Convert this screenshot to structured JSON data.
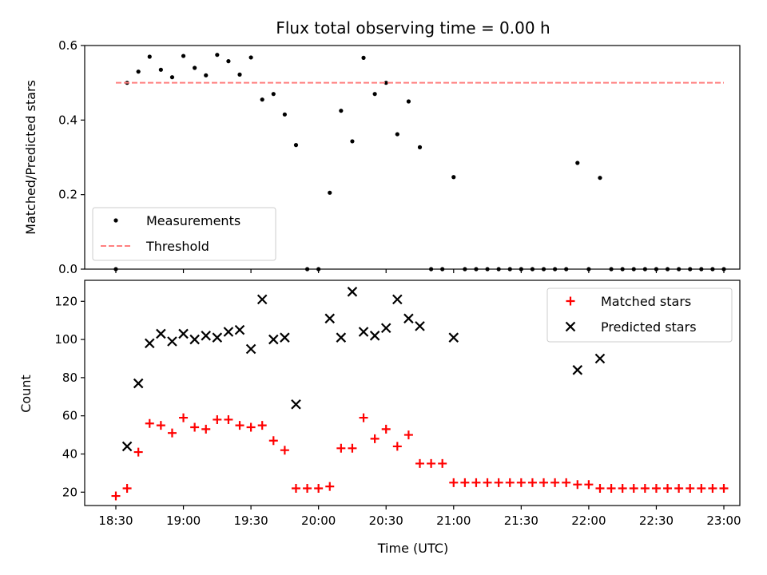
{
  "chart_data": [
    {
      "type": "scatter",
      "title": "Flux total observing time = 0.00 h",
      "ylabel": "Matched/Predicted stars",
      "ylim": [
        0,
        0.6
      ],
      "yticks": [
        "0.0",
        "0.2",
        "0.4",
        "0.6"
      ],
      "legend": "lower-left",
      "series": [
        {
          "name": "Measurements",
          "marker": "dot",
          "color": "#000000",
          "points": [
            [
              "18:30",
              0.0
            ],
            [
              "18:35",
              0.5
            ],
            [
              "18:40",
              0.53
            ],
            [
              "18:45",
              0.57
            ],
            [
              "18:50",
              0.535
            ],
            [
              "18:55",
              0.515
            ],
            [
              "19:00",
              0.572
            ],
            [
              "19:05",
              0.54
            ],
            [
              "19:10",
              0.52
            ],
            [
              "19:15",
              0.575
            ],
            [
              "19:20",
              0.558
            ],
            [
              "19:25",
              0.522
            ],
            [
              "19:30",
              0.568
            ],
            [
              "19:35",
              0.455
            ],
            [
              "19:40",
              0.47
            ],
            [
              "19:45",
              0.415
            ],
            [
              "19:50",
              0.333
            ],
            [
              "19:55",
              0.0
            ],
            [
              "20:00",
              0.0
            ],
            [
              "20:05",
              0.205
            ],
            [
              "20:10",
              0.425
            ],
            [
              "20:15",
              0.343
            ],
            [
              "20:20",
              0.567
            ],
            [
              "20:25",
              0.47
            ],
            [
              "20:30",
              0.5
            ],
            [
              "20:35",
              0.362
            ],
            [
              "20:40",
              0.45
            ],
            [
              "20:45",
              0.327
            ],
            [
              "20:50",
              0.0
            ],
            [
              "20:55",
              0.0
            ],
            [
              "21:00",
              0.247
            ],
            [
              "21:05",
              0.0
            ],
            [
              "21:10",
              0.0
            ],
            [
              "21:15",
              0.0
            ],
            [
              "21:20",
              0.0
            ],
            [
              "21:25",
              0.0
            ],
            [
              "21:30",
              0.0
            ],
            [
              "21:35",
              0.0
            ],
            [
              "21:40",
              0.0
            ],
            [
              "21:45",
              0.0
            ],
            [
              "21:50",
              0.0
            ],
            [
              "21:55",
              0.285
            ],
            [
              "22:00",
              0.0
            ],
            [
              "22:05",
              0.245
            ],
            [
              "22:10",
              0.0
            ],
            [
              "22:15",
              0.0
            ],
            [
              "22:20",
              0.0
            ],
            [
              "22:25",
              0.0
            ],
            [
              "22:30",
              0.0
            ],
            [
              "22:35",
              0.0
            ],
            [
              "22:40",
              0.0
            ],
            [
              "22:45",
              0.0
            ],
            [
              "22:50",
              0.0
            ],
            [
              "22:55",
              0.0
            ],
            [
              "23:00",
              0.0
            ]
          ]
        },
        {
          "name": "Threshold",
          "marker": "dashed-line",
          "color": "#ff7f7f",
          "points": [
            [
              "18:30",
              0.5
            ],
            [
              "23:00",
              0.5
            ]
          ]
        }
      ]
    },
    {
      "type": "scatter",
      "xlabel": "Time (UTC)",
      "ylabel": "Count",
      "ylim": [
        13,
        131
      ],
      "yticks": [
        "20",
        "40",
        "60",
        "80",
        "100",
        "120"
      ],
      "xticks": [
        "18:30",
        "19:00",
        "19:30",
        "20:00",
        "20:30",
        "21:00",
        "21:30",
        "22:00",
        "22:30",
        "23:00"
      ],
      "legend": "top-right",
      "series": [
        {
          "name": "Matched stars",
          "marker": "plus",
          "color": "#ff0000",
          "points": [
            [
              "18:30",
              18
            ],
            [
              "18:35",
              22
            ],
            [
              "18:40",
              41
            ],
            [
              "18:45",
              56
            ],
            [
              "18:50",
              55
            ],
            [
              "18:55",
              51
            ],
            [
              "19:00",
              59
            ],
            [
              "19:05",
              54
            ],
            [
              "19:10",
              53
            ],
            [
              "19:15",
              58
            ],
            [
              "19:20",
              58
            ],
            [
              "19:25",
              55
            ],
            [
              "19:30",
              54
            ],
            [
              "19:35",
              55
            ],
            [
              "19:40",
              47
            ],
            [
              "19:45",
              42
            ],
            [
              "19:50",
              22
            ],
            [
              "19:55",
              22
            ],
            [
              "20:00",
              22
            ],
            [
              "20:05",
              23
            ],
            [
              "20:10",
              43
            ],
            [
              "20:15",
              43
            ],
            [
              "20:20",
              59
            ],
            [
              "20:25",
              48
            ],
            [
              "20:30",
              53
            ],
            [
              "20:35",
              44
            ],
            [
              "20:40",
              50
            ],
            [
              "20:45",
              35
            ],
            [
              "20:50",
              35
            ],
            [
              "20:55",
              35
            ],
            [
              "21:00",
              25
            ],
            [
              "21:05",
              25
            ],
            [
              "21:10",
              25
            ],
            [
              "21:15",
              25
            ],
            [
              "21:20",
              25
            ],
            [
              "21:25",
              25
            ],
            [
              "21:30",
              25
            ],
            [
              "21:35",
              25
            ],
            [
              "21:40",
              25
            ],
            [
              "21:45",
              25
            ],
            [
              "21:50",
              25
            ],
            [
              "21:55",
              24
            ],
            [
              "22:00",
              24
            ],
            [
              "22:05",
              22
            ],
            [
              "22:10",
              22
            ],
            [
              "22:15",
              22
            ],
            [
              "22:20",
              22
            ],
            [
              "22:25",
              22
            ],
            [
              "22:30",
              22
            ],
            [
              "22:35",
              22
            ],
            [
              "22:40",
              22
            ],
            [
              "22:45",
              22
            ],
            [
              "22:50",
              22
            ],
            [
              "22:55",
              22
            ],
            [
              "23:00",
              22
            ]
          ]
        },
        {
          "name": "Predicted stars",
          "marker": "x",
          "color": "#000000",
          "points": [
            [
              "18:35",
              44
            ],
            [
              "18:40",
              77
            ],
            [
              "18:45",
              98
            ],
            [
              "18:50",
              103
            ],
            [
              "18:55",
              99
            ],
            [
              "19:00",
              103
            ],
            [
              "19:05",
              100
            ],
            [
              "19:10",
              102
            ],
            [
              "19:15",
              101
            ],
            [
              "19:20",
              104
            ],
            [
              "19:25",
              105
            ],
            [
              "19:30",
              95
            ],
            [
              "19:35",
              121
            ],
            [
              "19:40",
              100
            ],
            [
              "19:45",
              101
            ],
            [
              "19:50",
              66
            ],
            [
              "20:05",
              111
            ],
            [
              "20:10",
              101
            ],
            [
              "20:15",
              125
            ],
            [
              "20:20",
              104
            ],
            [
              "20:25",
              102
            ],
            [
              "20:30",
              106
            ],
            [
              "20:35",
              121
            ],
            [
              "20:40",
              111
            ],
            [
              "20:45",
              107
            ],
            [
              "21:00",
              101
            ],
            [
              "21:55",
              84
            ],
            [
              "22:05",
              90
            ]
          ]
        }
      ]
    }
  ]
}
